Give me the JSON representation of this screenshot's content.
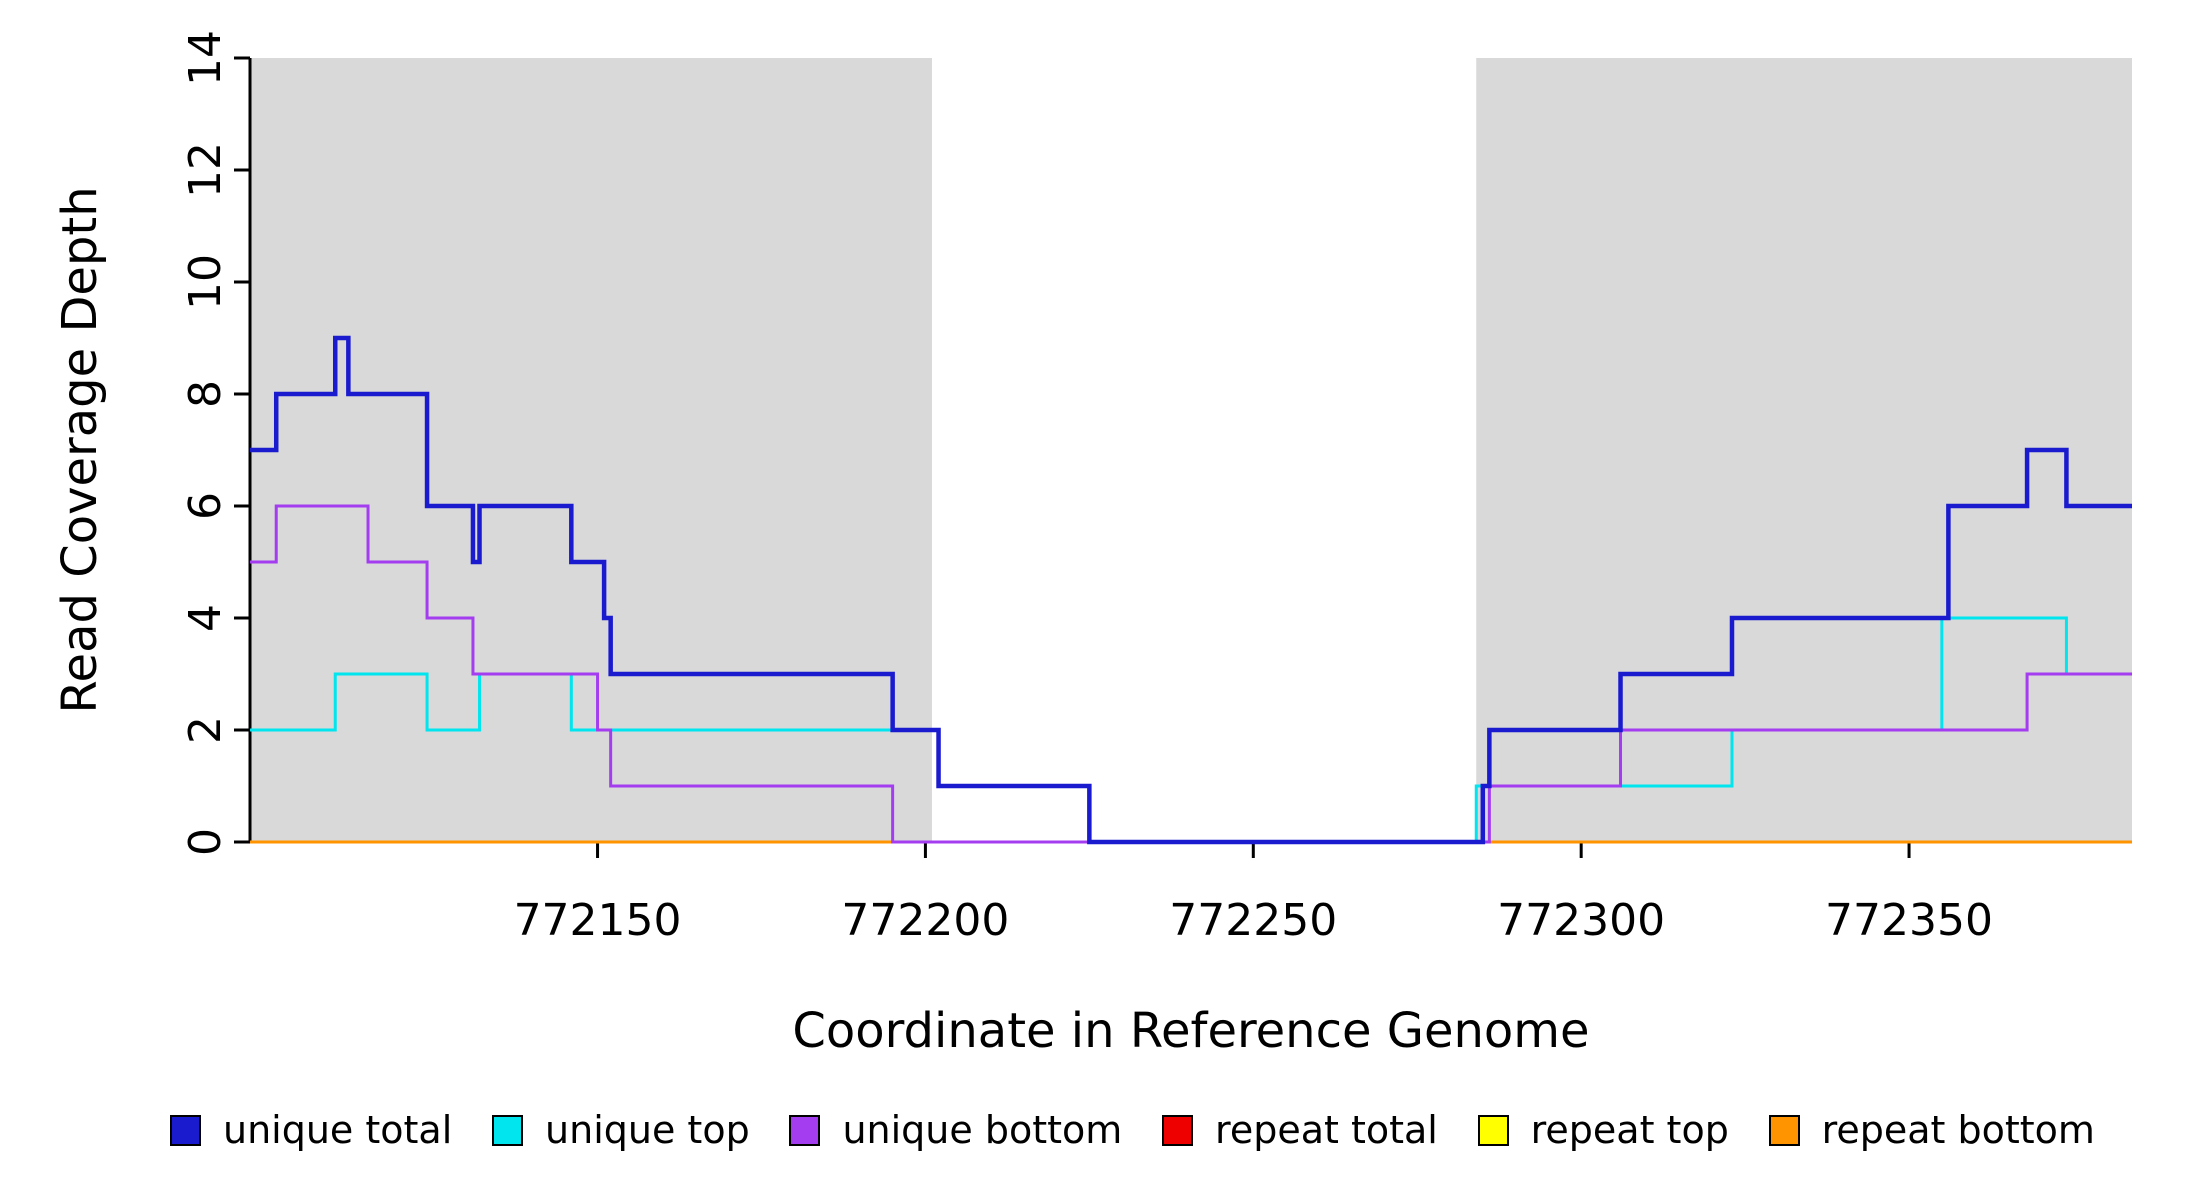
{
  "chart_data": {
    "type": "line",
    "subtype": "step",
    "title": "",
    "xlabel": "Coordinate in Reference Genome",
    "ylabel": "Read Coverage Depth",
    "xlim": [
      772097,
      772384
    ],
    "ylim": [
      0,
      14
    ],
    "xticks": [
      772150,
      772200,
      772250,
      772300,
      772350
    ],
    "yticks": [
      0,
      2,
      4,
      6,
      8,
      10,
      12,
      14
    ],
    "grid": false,
    "legend_position": "bottom",
    "background_color": "#ffffff",
    "shaded_region_color": "#d9d9d9",
    "shaded_regions": [
      {
        "x0": 772097,
        "x1": 772201
      },
      {
        "x0": 772284,
        "x1": 772384
      }
    ],
    "series": [
      {
        "name": "repeat total",
        "color": "#ee0000",
        "points": [
          [
            772097,
            0
          ],
          [
            772384,
            0
          ]
        ]
      },
      {
        "name": "repeat top",
        "color": "#ffff00",
        "points": [
          [
            772097,
            0
          ],
          [
            772384,
            0
          ]
        ]
      },
      {
        "name": "repeat bottom",
        "color": "#ff9400",
        "points": [
          [
            772097,
            0
          ],
          [
            772384,
            0
          ]
        ]
      },
      {
        "name": "unique top",
        "color": "#00e5ee",
        "points": [
          [
            772097,
            2
          ],
          [
            772110,
            3
          ],
          [
            772124,
            2
          ],
          [
            772132,
            3
          ],
          [
            772146,
            2
          ],
          [
            772202,
            1
          ],
          [
            772225,
            0
          ],
          [
            772284,
            1
          ],
          [
            772323,
            2
          ],
          [
            772355,
            4
          ],
          [
            772374,
            3
          ],
          [
            772384,
            3
          ]
        ]
      },
      {
        "name": "unique bottom",
        "color": "#a43df0",
        "points": [
          [
            772097,
            5
          ],
          [
            772101,
            6
          ],
          [
            772115,
            5
          ],
          [
            772124,
            4
          ],
          [
            772131,
            3
          ],
          [
            772150,
            2
          ],
          [
            772152,
            1
          ],
          [
            772195,
            0
          ],
          [
            772286,
            1
          ],
          [
            772306,
            2
          ],
          [
            772368,
            3
          ],
          [
            772384,
            3
          ]
        ]
      },
      {
        "name": "unique total",
        "color": "#1a1acf",
        "points": [
          [
            772097,
            7
          ],
          [
            772101,
            8
          ],
          [
            772110,
            9
          ],
          [
            772112,
            8
          ],
          [
            772124,
            6
          ],
          [
            772131,
            5
          ],
          [
            772132,
            6
          ],
          [
            772146,
            5
          ],
          [
            772151,
            4
          ],
          [
            772152,
            3
          ],
          [
            772195,
            2
          ],
          [
            772202,
            1
          ],
          [
            772225,
            0
          ],
          [
            772285,
            1
          ],
          [
            772286,
            2
          ],
          [
            772306,
            3
          ],
          [
            772323,
            4
          ],
          [
            772356,
            6
          ],
          [
            772368,
            7
          ],
          [
            772374,
            6
          ],
          [
            772384,
            6
          ]
        ]
      }
    ],
    "legend": [
      {
        "label": "unique total",
        "color": "#1a1acf"
      },
      {
        "label": "unique top",
        "color": "#00e5ee"
      },
      {
        "label": "unique bottom",
        "color": "#a43df0"
      },
      {
        "label": "repeat total",
        "color": "#ee0000"
      },
      {
        "label": "repeat top",
        "color": "#ffff00"
      },
      {
        "label": "repeat bottom",
        "color": "#ff9400"
      }
    ]
  }
}
